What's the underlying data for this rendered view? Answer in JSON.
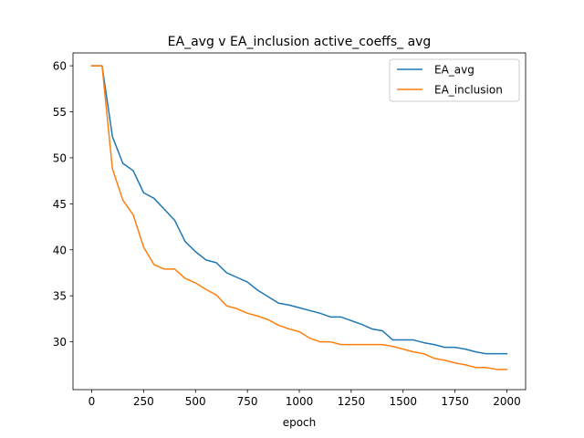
{
  "chart_data": {
    "type": "line",
    "title": "EA_avg v EA_inclusion active_coeffs_ avg",
    "xlabel": "epoch",
    "ylabel": "",
    "xlim": [
      -90,
      2090
    ],
    "ylim": [
      24.8,
      61.4
    ],
    "xticks": [
      0,
      250,
      500,
      750,
      1000,
      1250,
      1500,
      1750,
      2000
    ],
    "yticks": [
      30,
      35,
      40,
      45,
      50,
      55,
      60
    ],
    "grid": false,
    "legend_position": "top-right",
    "series": [
      {
        "name": "EA_avg",
        "color": "#1f77b4",
        "x": [
          0,
          50,
          100,
          150,
          200,
          250,
          300,
          350,
          400,
          450,
          500,
          550,
          600,
          650,
          700,
          750,
          800,
          850,
          900,
          950,
          1000,
          1050,
          1100,
          1150,
          1200,
          1250,
          1300,
          1350,
          1400,
          1450,
          1500,
          1550,
          1600,
          1650,
          1700,
          1750,
          1800,
          1850,
          1900,
          1950,
          2000
        ],
        "values": [
          60.0,
          60.0,
          52.3,
          49.4,
          48.6,
          46.2,
          45.6,
          44.4,
          43.2,
          40.9,
          39.8,
          38.9,
          38.6,
          37.5,
          37.0,
          36.5,
          35.6,
          34.9,
          34.2,
          34.0,
          33.7,
          33.4,
          33.1,
          32.7,
          32.7,
          32.3,
          31.9,
          31.4,
          31.2,
          30.2,
          30.2,
          30.2,
          29.9,
          29.7,
          29.4,
          29.4,
          29.2,
          28.9,
          28.7,
          28.7,
          28.7
        ]
      },
      {
        "name": "EA_inclusion",
        "color": "#ff7f0e",
        "x": [
          0,
          50,
          100,
          150,
          200,
          250,
          300,
          350,
          400,
          450,
          500,
          550,
          600,
          650,
          700,
          750,
          800,
          850,
          900,
          950,
          1000,
          1050,
          1100,
          1150,
          1200,
          1250,
          1300,
          1350,
          1400,
          1450,
          1500,
          1550,
          1600,
          1650,
          1700,
          1750,
          1800,
          1850,
          1900,
          1950,
          2000
        ],
        "values": [
          60.0,
          60.0,
          48.8,
          45.4,
          43.8,
          40.3,
          38.4,
          37.9,
          37.9,
          36.9,
          36.4,
          35.7,
          35.1,
          33.9,
          33.6,
          33.1,
          32.8,
          32.4,
          31.8,
          31.4,
          31.1,
          30.4,
          30.0,
          30.0,
          29.7,
          29.7,
          29.7,
          29.7,
          29.7,
          29.5,
          29.2,
          28.9,
          28.7,
          28.2,
          28.0,
          27.7,
          27.5,
          27.2,
          27.2,
          27.0,
          27.0
        ]
      }
    ]
  }
}
